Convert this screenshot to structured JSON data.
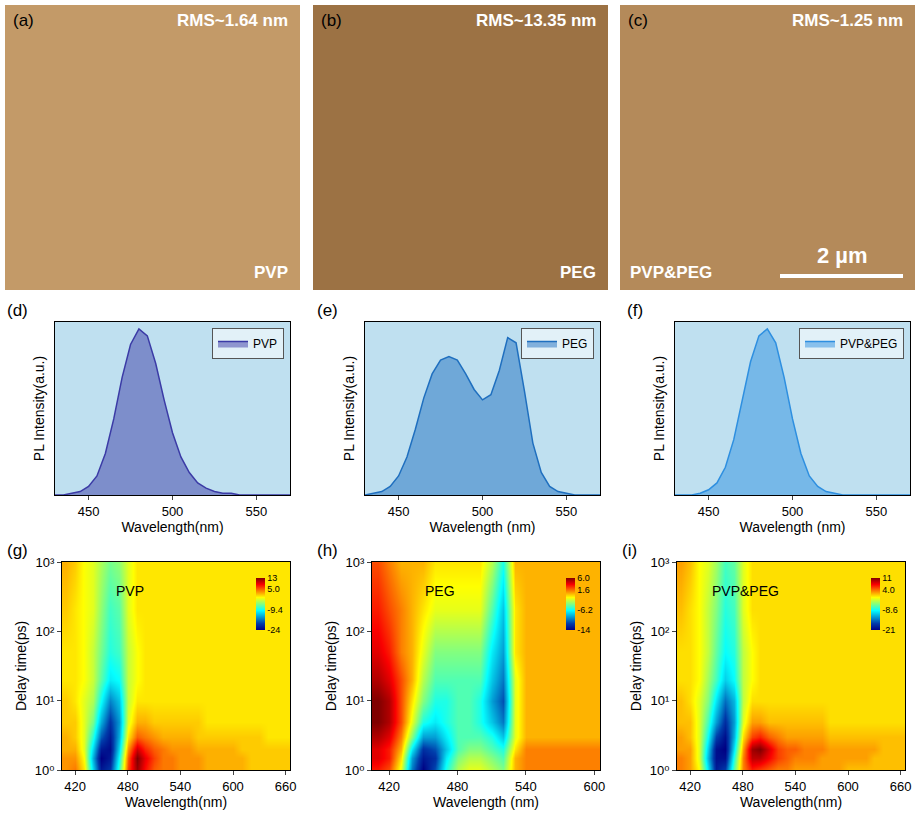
{
  "chart_data": [
    {
      "type": "image",
      "label": "(a)",
      "title": "RMS~1.64 nm",
      "text": "PVP",
      "color": "#c39a68"
    },
    {
      "type": "image",
      "label": "(b)",
      "title": "RMS~13.35 nm",
      "text": "PEG",
      "color": "#9c7244"
    },
    {
      "type": "image",
      "label": "(c)",
      "title": "RMS~1.25 nm",
      "text": "PVP&PEG",
      "color": "#b48a5a",
      "scale_bar": "2 µm"
    },
    {
      "type": "area",
      "label": "(d)",
      "x_label": "Wavelength(nm)",
      "y_label": "PL Intensity(a.u.)",
      "xlim": [
        430,
        570
      ],
      "xticks": [
        450,
        500,
        550
      ],
      "ylim": [
        0,
        1
      ],
      "tick_labels": "x",
      "legend": "upper right",
      "series": [
        {
          "name": "PVP",
          "color": "#3b3ba6",
          "x": [
            430,
            435,
            440,
            445,
            450,
            455,
            460,
            465,
            470,
            475,
            480,
            485,
            490,
            495,
            500,
            505,
            510,
            515,
            520,
            525,
            530,
            535,
            540,
            545,
            550,
            555,
            560,
            565,
            570
          ],
          "values": [
            0,
            0,
            0.01,
            0.02,
            0.05,
            0.11,
            0.24,
            0.44,
            0.68,
            0.87,
            0.96,
            0.92,
            0.76,
            0.55,
            0.36,
            0.22,
            0.13,
            0.07,
            0.04,
            0.02,
            0.01,
            0.01,
            0,
            0,
            0,
            0,
            0,
            0,
            0
          ]
        }
      ]
    },
    {
      "type": "area",
      "label": "(e)",
      "x_label": "Wavelength (nm)",
      "y_label": "PL Intensity(a.u.)",
      "xlim": [
        430,
        570
      ],
      "xticks": [
        450,
        500,
        550
      ],
      "ylim": [
        0,
        1
      ],
      "tick_labels": "x",
      "legend": "upper right",
      "series": [
        {
          "name": "PEG",
          "color": "#1f6fbf",
          "x": [
            430,
            435,
            440,
            445,
            450,
            455,
            460,
            465,
            470,
            475,
            480,
            485,
            490,
            495,
            500,
            505,
            510,
            515,
            520,
            525,
            530,
            535,
            540,
            545,
            550,
            555,
            560,
            565,
            570
          ],
          "values": [
            0,
            0.01,
            0.02,
            0.05,
            0.11,
            0.22,
            0.38,
            0.56,
            0.7,
            0.78,
            0.8,
            0.78,
            0.7,
            0.61,
            0.55,
            0.58,
            0.72,
            0.91,
            0.88,
            0.6,
            0.3,
            0.13,
            0.05,
            0.02,
            0.01,
            0,
            0,
            0,
            0
          ]
        }
      ]
    },
    {
      "type": "area",
      "label": "(f)",
      "x_label": "Wavelength (nm)",
      "y_label": "PL Intensity(a.u.)",
      "xlim": [
        430,
        570
      ],
      "xticks": [
        450,
        500,
        550
      ],
      "ylim": [
        0,
        1
      ],
      "tick_labels": "x",
      "legend": "upper right",
      "series": [
        {
          "name": "PVP&PEG",
          "color": "#2e8fe0",
          "x": [
            430,
            435,
            440,
            445,
            450,
            455,
            460,
            465,
            470,
            475,
            480,
            485,
            490,
            495,
            500,
            505,
            510,
            515,
            520,
            525,
            530,
            535,
            540,
            545,
            550,
            555,
            560,
            565,
            570
          ],
          "values": [
            0,
            0,
            0,
            0.01,
            0.03,
            0.07,
            0.16,
            0.32,
            0.54,
            0.77,
            0.92,
            0.96,
            0.88,
            0.68,
            0.44,
            0.24,
            0.11,
            0.05,
            0.02,
            0.01,
            0,
            0,
            0,
            0,
            0,
            0,
            0,
            0,
            0
          ]
        }
      ]
    },
    {
      "type": "heatmap",
      "label": "(g)",
      "text": "PVP",
      "x_label": "Wavelength(nm)",
      "y_label": "Delay time(ps)",
      "xlim": [
        405,
        665
      ],
      "xticks": [
        420,
        480,
        540,
        600,
        660
      ],
      "ylim": [
        1,
        1000
      ],
      "yticks": [
        {
          "value": 1,
          "label": "10⁰"
        },
        {
          "value": 10,
          "label": "10¹"
        },
        {
          "value": 100,
          "label": "10²"
        },
        {
          "value": 1000,
          "label": "10³"
        }
      ],
      "log": "y",
      "colorbar_range": [
        -24,
        13
      ],
      "colorbar_ticks": [
        -24,
        -9.4,
        {
          "value": 5,
          "label": "5.0"
        },
        13
      ],
      "x": [
        410,
        420,
        430,
        440,
        450,
        460,
        470,
        480,
        490,
        500,
        510,
        520,
        530,
        540,
        550,
        560,
        570,
        580,
        590,
        600,
        610,
        620,
        630,
        640,
        650,
        660
      ],
      "y": [
        1,
        1.5,
        2,
        3,
        5,
        10,
        20,
        50,
        200,
        1000
      ],
      "z": [
        [
          3,
          4,
          0,
          -12,
          -22,
          -20,
          -8,
          6,
          12,
          8,
          5,
          4,
          4,
          3,
          3,
          3,
          2,
          2,
          2,
          2,
          2,
          1,
          1,
          1,
          1,
          1
        ],
        [
          3,
          3,
          -1,
          -14,
          -24,
          -22,
          -10,
          5,
          13,
          9,
          6,
          4,
          4,
          3,
          3,
          3,
          2,
          2,
          2,
          2,
          2,
          1,
          1,
          1,
          1,
          1
        ],
        [
          2,
          2,
          -2,
          -12,
          -22,
          -23,
          -12,
          3,
          10,
          7,
          5,
          4,
          3,
          3,
          3,
          2,
          2,
          2,
          2,
          2,
          1,
          1,
          1,
          1,
          1,
          1
        ],
        [
          2,
          1,
          -2,
          -9,
          -18,
          -22,
          -14,
          0,
          5,
          4,
          3,
          2,
          2,
          2,
          2,
          1,
          1,
          1,
          1,
          1,
          1,
          1,
          1,
          0,
          0,
          0
        ],
        [
          1,
          1,
          -2,
          -6,
          -14,
          -20,
          -15,
          -2,
          2,
          2,
          1,
          1,
          1,
          1,
          1,
          1,
          0,
          0,
          0,
          0,
          0,
          0,
          0,
          0,
          0,
          0
        ],
        [
          1,
          0,
          -2,
          -4,
          -10,
          -16,
          -13,
          -3,
          0,
          0,
          0,
          0,
          0,
          0,
          0,
          0,
          0,
          0,
          0,
          0,
          0,
          0,
          0,
          0,
          0,
          0
        ],
        [
          0,
          0,
          -1,
          -3,
          -7,
          -11,
          -10,
          -3,
          -1,
          0,
          0,
          0,
          0,
          0,
          0,
          0,
          0,
          0,
          0,
          0,
          0,
          0,
          0,
          0,
          0,
          0
        ],
        [
          0,
          0,
          -1,
          -3,
          -6,
          -9,
          -8,
          -3,
          -1,
          0,
          0,
          0,
          0,
          0,
          0,
          0,
          0,
          0,
          0,
          0,
          0,
          0,
          0,
          0,
          0,
          0
        ],
        [
          1,
          0,
          -1,
          -2,
          -5,
          -8,
          -7,
          -2,
          0,
          0,
          0,
          0,
          0,
          0,
          0,
          0,
          0,
          0,
          0,
          0,
          0,
          0,
          0,
          0,
          0,
          0
        ],
        [
          2,
          1,
          -1,
          -2,
          -4,
          -6,
          -5,
          -2,
          0,
          0,
          0,
          0,
          0,
          0,
          0,
          0,
          0,
          0,
          0,
          0,
          0,
          0,
          0,
          0,
          0,
          0
        ]
      ]
    },
    {
      "type": "heatmap",
      "label": "(h)",
      "text": "PEG",
      "x_label": "Wavelength (nm)",
      "y_label": "Delay time(ps)",
      "xlim": [
        405,
        605
      ],
      "xticks": [
        420,
        480,
        540,
        600
      ],
      "ylim": [
        1,
        1000
      ],
      "yticks": [
        {
          "value": 1,
          "label": "10⁰"
        },
        {
          "value": 10,
          "label": "10¹"
        },
        {
          "value": 100,
          "label": "10²"
        },
        {
          "value": 1000,
          "label": "10³"
        }
      ],
      "log": "y",
      "colorbar_range": [
        -14,
        6
      ],
      "colorbar_ticks": [
        -14,
        -6.2,
        1.6,
        {
          "value": 6,
          "label": "6.0"
        }
      ],
      "x": [
        410,
        420,
        430,
        440,
        450,
        460,
        470,
        480,
        490,
        500,
        510,
        520,
        530,
        540,
        550,
        560,
        570,
        580,
        590,
        600
      ],
      "y": [
        1,
        1.5,
        2,
        3,
        5,
        10,
        20,
        50,
        200,
        1000
      ],
      "z": [
        [
          3,
          2,
          -2,
          -10,
          -14,
          -11,
          -6,
          -3,
          -2,
          -2,
          -3,
          -4,
          0,
          1,
          1,
          1,
          1,
          1,
          1,
          1
        ],
        [
          4,
          3,
          -1,
          -9,
          -13,
          -12,
          -7,
          -4,
          -3,
          -3,
          -4,
          -5,
          0,
          1,
          1,
          1,
          1,
          1,
          1,
          1
        ],
        [
          4,
          3,
          0,
          -7,
          -12,
          -11,
          -8,
          -5,
          -4,
          -4,
          -5,
          -6,
          -1,
          1,
          1,
          1,
          1,
          1,
          1,
          1
        ],
        [
          5,
          4,
          1,
          -4,
          -9,
          -9,
          -7,
          -5,
          -5,
          -5,
          -6,
          -8,
          -2,
          0,
          0,
          0,
          0,
          0,
          0,
          0
        ],
        [
          6,
          5,
          2,
          -2,
          -6,
          -7,
          -6,
          -5,
          -5,
          -6,
          -8,
          -10,
          -2,
          0,
          0,
          0,
          0,
          0,
          0,
          0
        ],
        [
          6,
          5,
          2,
          -1,
          -4,
          -6,
          -6,
          -5,
          -5,
          -6,
          -9,
          -11,
          -2,
          0,
          0,
          0,
          0,
          0,
          0,
          0
        ],
        [
          5,
          4,
          2,
          0,
          -3,
          -5,
          -5,
          -5,
          -5,
          -5,
          -8,
          -10,
          -2,
          0,
          0,
          0,
          0,
          0,
          0,
          0
        ],
        [
          4,
          3,
          1,
          0,
          -2,
          -4,
          -4,
          -4,
          -4,
          -4,
          -7,
          -9,
          -1,
          0,
          0,
          0,
          0,
          0,
          0,
          0
        ],
        [
          3,
          2,
          1,
          0,
          -1,
          -2,
          -2,
          -2,
          -2,
          -2,
          -5,
          -8,
          -1,
          0,
          0,
          0,
          0,
          0,
          0,
          0
        ],
        [
          2,
          1,
          0,
          0,
          0,
          -1,
          -1,
          -1,
          -1,
          -1,
          -3,
          -6,
          0,
          0,
          0,
          0,
          0,
          0,
          0,
          0
        ]
      ]
    },
    {
      "type": "heatmap",
      "label": "(i)",
      "text": "PVP&PEG",
      "x_label": "Wavelength(nm)",
      "y_label": "Delay time(ps)",
      "xlim": [
        405,
        665
      ],
      "xticks": [
        420,
        480,
        540,
        600,
        660
      ],
      "ylim": [
        1,
        1000
      ],
      "yticks": [
        {
          "value": 1,
          "label": "10⁰"
        },
        {
          "value": 10,
          "label": "10¹"
        },
        {
          "value": 100,
          "label": "10²"
        },
        {
          "value": 1000,
          "label": "10³"
        }
      ],
      "log": "y",
      "colorbar_range": [
        -21,
        11
      ],
      "colorbar_ticks": [
        -21,
        -8.6,
        {
          "value": 4,
          "label": "4.0"
        },
        11
      ],
      "x": [
        410,
        420,
        430,
        440,
        450,
        460,
        470,
        480,
        490,
        500,
        510,
        520,
        530,
        540,
        550,
        560,
        570,
        580,
        590,
        600,
        610,
        620,
        630,
        640,
        650,
        660
      ],
      "y": [
        1,
        1.5,
        2,
        3,
        5,
        10,
        20,
        50,
        200,
        1000
      ],
      "z": [
        [
          3,
          2,
          -1,
          -10,
          -19,
          -17,
          -6,
          3,
          6,
          5,
          4,
          3,
          3,
          2,
          2,
          2,
          2,
          2,
          2,
          1,
          1,
          1,
          1,
          1,
          1,
          1
        ],
        [
          3,
          2,
          -2,
          -12,
          -20,
          -20,
          -8,
          3,
          9,
          9,
          7,
          5,
          4,
          3,
          3,
          3,
          2,
          2,
          2,
          2,
          2,
          2,
          1,
          1,
          1,
          1
        ],
        [
          2,
          2,
          -2,
          -11,
          -20,
          -21,
          -10,
          2,
          10,
          11,
          8,
          5,
          4,
          4,
          3,
          3,
          3,
          2,
          2,
          2,
          2,
          2,
          2,
          1,
          1,
          1
        ],
        [
          2,
          1,
          -2,
          -9,
          -17,
          -20,
          -12,
          0,
          5,
          6,
          4,
          3,
          2,
          2,
          2,
          2,
          2,
          1,
          1,
          1,
          1,
          1,
          1,
          1,
          1,
          1
        ],
        [
          1,
          1,
          -2,
          -7,
          -13,
          -18,
          -13,
          -2,
          2,
          2,
          1,
          1,
          1,
          1,
          1,
          1,
          1,
          0,
          0,
          0,
          0,
          0,
          0,
          0,
          0,
          0
        ],
        [
          1,
          0,
          -2,
          -5,
          -10,
          -15,
          -12,
          -3,
          0,
          0,
          0,
          0,
          0,
          0,
          0,
          0,
          0,
          0,
          0,
          0,
          0,
          0,
          0,
          0,
          0,
          0
        ],
        [
          0,
          0,
          -1,
          -4,
          -7,
          -11,
          -9,
          -3,
          -1,
          0,
          0,
          0,
          0,
          0,
          0,
          0,
          0,
          0,
          0,
          0,
          0,
          0,
          0,
          0,
          0,
          0
        ],
        [
          0,
          0,
          -1,
          -3,
          -6,
          -9,
          -8,
          -3,
          -1,
          0,
          0,
          0,
          0,
          0,
          0,
          0,
          0,
          0,
          0,
          0,
          0,
          0,
          0,
          0,
          0,
          0
        ],
        [
          1,
          0,
          -1,
          -3,
          -5,
          -8,
          -7,
          -2,
          0,
          0,
          0,
          0,
          0,
          0,
          0,
          0,
          0,
          0,
          0,
          0,
          0,
          0,
          0,
          0,
          0,
          0
        ],
        [
          2,
          1,
          -1,
          -2,
          -4,
          -7,
          -6,
          -2,
          0,
          0,
          0,
          0,
          0,
          0,
          0,
          0,
          0,
          0,
          0,
          0,
          0,
          0,
          0,
          0,
          0,
          0
        ]
      ]
    }
  ]
}
